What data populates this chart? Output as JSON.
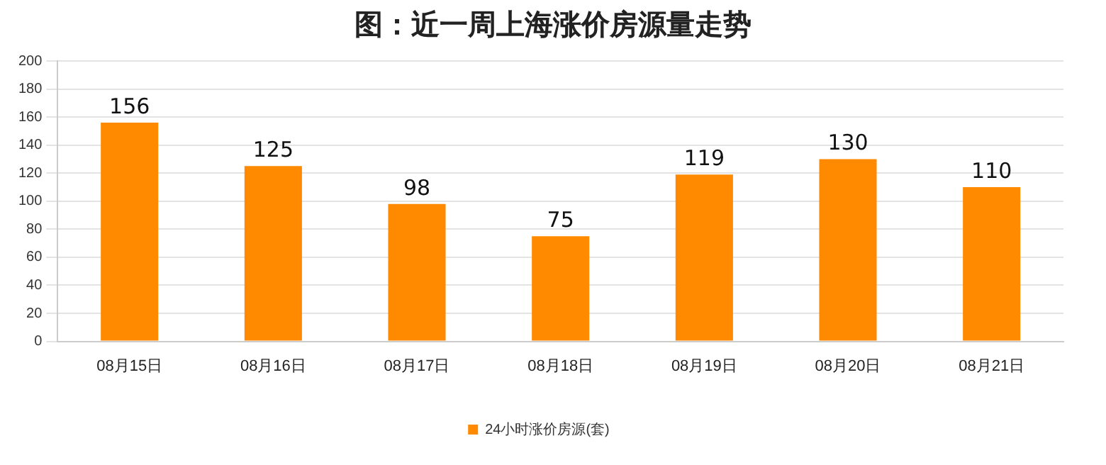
{
  "chart_data": {
    "type": "bar",
    "title": "图：近一周上海涨价房源量走势",
    "categories": [
      "08月15日",
      "08月16日",
      "08月17日",
      "08月18日",
      "08月19日",
      "08月20日",
      "08月21日"
    ],
    "series": [
      {
        "name": "24小时涨价房源(套)",
        "color": "#ff8a00",
        "values": [
          156,
          125,
          98,
          75,
          119,
          130,
          110
        ]
      }
    ],
    "ylim": [
      0,
      200
    ],
    "yticks": [
      0,
      20,
      40,
      60,
      80,
      100,
      120,
      140,
      160,
      180,
      200
    ],
    "grid": "y",
    "legend": "bottom",
    "data_labels": true
  }
}
